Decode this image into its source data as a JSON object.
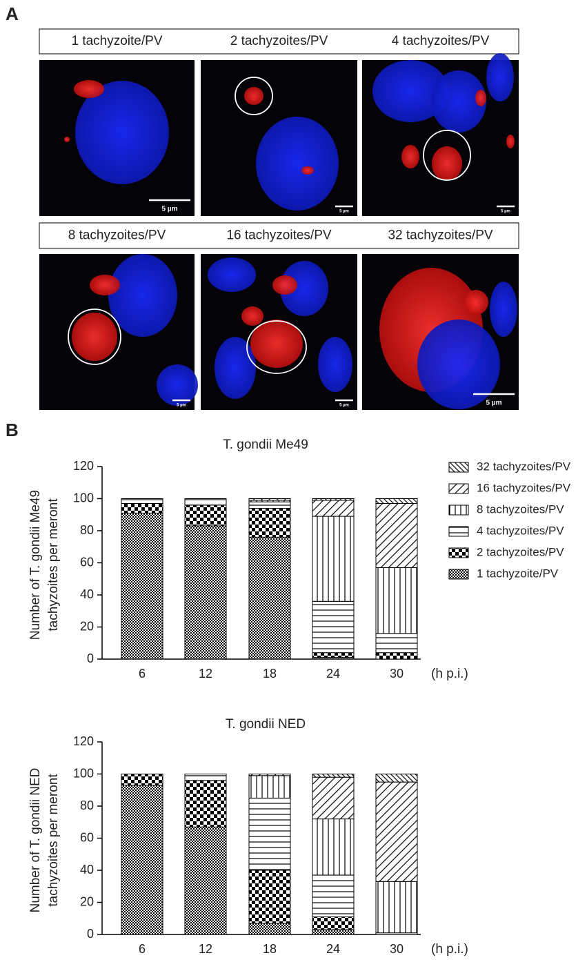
{
  "panel_a": {
    "label": "A",
    "images": [
      {
        "caption": "1 tachyzoite/PV",
        "scale_bar": "5 µm"
      },
      {
        "caption": "2 tachyzoites/PV",
        "scale_bar": "5 µm"
      },
      {
        "caption": "4 tachyzoites/PV",
        "scale_bar": "5 µm"
      },
      {
        "caption": "8 tachyzoites/PV",
        "scale_bar": "5 µm"
      },
      {
        "caption": "16 tachyzoites/PV",
        "scale_bar": "5 µm"
      },
      {
        "caption": "32 tachyzoites/PV",
        "scale_bar": "5 µm"
      }
    ]
  },
  "panel_b_label": "B",
  "chart_data": [
    {
      "type": "bar",
      "stacked": true,
      "title": "T. gondii Me49",
      "ylabel": [
        "Number of T. gondii Me49",
        "tachyzoites per meront"
      ],
      "xlabel": "(h p.i.)",
      "categories": [
        "6",
        "12",
        "18",
        "24",
        "30"
      ],
      "ylim": [
        0,
        120
      ],
      "yticks": [
        0,
        20,
        40,
        60,
        80,
        100,
        120
      ],
      "legend": "right",
      "series": [
        {
          "name": "1 tachyzoite/PV",
          "pattern": "checker-fine",
          "color": "#000000",
          "values": [
            91,
            83,
            76,
            1,
            0
          ]
        },
        {
          "name": "2 tachyzoites/PV",
          "pattern": "checker-coarse",
          "color": "#000000",
          "values": [
            6,
            13,
            18,
            3,
            4
          ]
        },
        {
          "name": "4 tachyzoites/PV",
          "pattern": "hlines",
          "color": "#000000",
          "values": [
            3,
            4,
            4,
            32,
            12
          ]
        },
        {
          "name": "8 tachyzoites/PV",
          "pattern": "vlines",
          "color": "#000000",
          "values": [
            0,
            0,
            1,
            53,
            41
          ]
        },
        {
          "name": "16 tachyzoites/PV",
          "pattern": "diag",
          "color": "#000000",
          "values": [
            0,
            0,
            1,
            10,
            40
          ]
        },
        {
          "name": "32 tachyzoites/PV",
          "pattern": "diag-back",
          "color": "#000000",
          "values": [
            0,
            0,
            0,
            1,
            3
          ]
        }
      ]
    },
    {
      "type": "bar",
      "stacked": true,
      "title": "T. gondii NED",
      "ylabel": [
        "Number of T. gondii NED",
        "tachyzoites per meront"
      ],
      "xlabel": "(h p.i.)",
      "categories": [
        "6",
        "12",
        "18",
        "24",
        "30"
      ],
      "ylim": [
        0,
        120
      ],
      "yticks": [
        0,
        20,
        40,
        60,
        80,
        100,
        120
      ],
      "series": [
        {
          "pattern": "checker-fine",
          "color": "#000000",
          "values": [
            93,
            67,
            7,
            3,
            0
          ]
        },
        {
          "pattern": "checker-coarse",
          "color": "#000000",
          "values": [
            7,
            29,
            33,
            8,
            0
          ]
        },
        {
          "pattern": "hlines",
          "color": "#000000",
          "values": [
            0,
            4,
            45,
            26,
            1
          ]
        },
        {
          "pattern": "vlines",
          "color": "#000000",
          "values": [
            0,
            0,
            14,
            35,
            32
          ]
        },
        {
          "pattern": "diag",
          "color": "#000000",
          "values": [
            0,
            0,
            1,
            26,
            62
          ]
        },
        {
          "pattern": "diag-back",
          "color": "#000000",
          "values": [
            0,
            0,
            0,
            2,
            5
          ]
        }
      ]
    }
  ]
}
